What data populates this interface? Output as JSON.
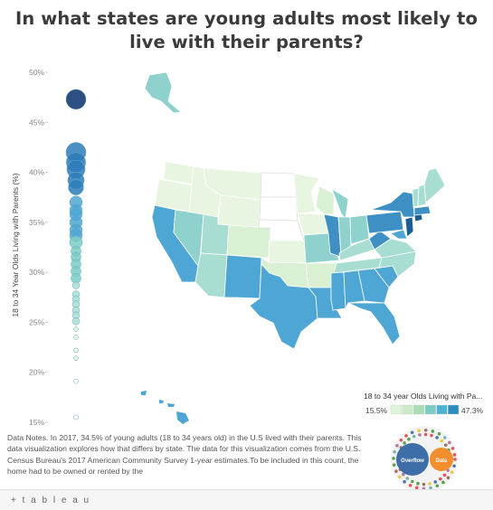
{
  "title": "In what states are young adults most likely to live with their parents?",
  "notes_label": "Data Notes",
  "notes_text": ". In 2017, 34.5% of young adults (18 to 34 years old) in the U.S lived with their parents. This data visualization explores how that differs by state. The data for this visualization comes from the U.S. Census Bureau's 2017 American Community Survey 1-year estimates.To be included in this count, the home had to be owned or rented by the",
  "footer_logo": "+ t a b l e a u",
  "legend": {
    "title": "18 to 34 year Olds Living with Pa...",
    "min_label": "15.5%",
    "max_label": "47.3%",
    "colors": [
      "#ffffff",
      "#e0f3db",
      "#ccebc5",
      "#a8ddb5",
      "#7bccc4",
      "#4eb3d3",
      "#2b8cbe",
      "#08589e"
    ]
  },
  "overflow_widget": {
    "left_label": "Overflow",
    "right_label": "Data",
    "left_color": "#3e6ea8",
    "right_color": "#f28e2b"
  },
  "chart_data": [
    {
      "type": "scatter",
      "ylabel": "18 to 34 Year Olds Living with Parents (%)",
      "ylim": [
        15,
        50
      ],
      "yticks": [
        15,
        20,
        25,
        30,
        35,
        40,
        45,
        50
      ],
      "ytick_labels": [
        "15%",
        "20%",
        "25%",
        "30%",
        "35%",
        "40%",
        "45%",
        "50%"
      ],
      "points": [
        47.3,
        42.0,
        41.0,
        40.3,
        39.2,
        38.5,
        37.0,
        36.2,
        35.8,
        35.0,
        34.2,
        33.7,
        33.0,
        32.1,
        31.5,
        30.8,
        30.1,
        29.4,
        28.7,
        27.8,
        27.3,
        26.8,
        26.2,
        25.7,
        25.1,
        24.3,
        23.5,
        22.2,
        21.4,
        19.1,
        15.5
      ]
    },
    {
      "type": "choropleth",
      "metric": "18 to 34 year Olds Living with Parents",
      "color_range": [
        "15.5%",
        "47.3%"
      ]
    }
  ]
}
